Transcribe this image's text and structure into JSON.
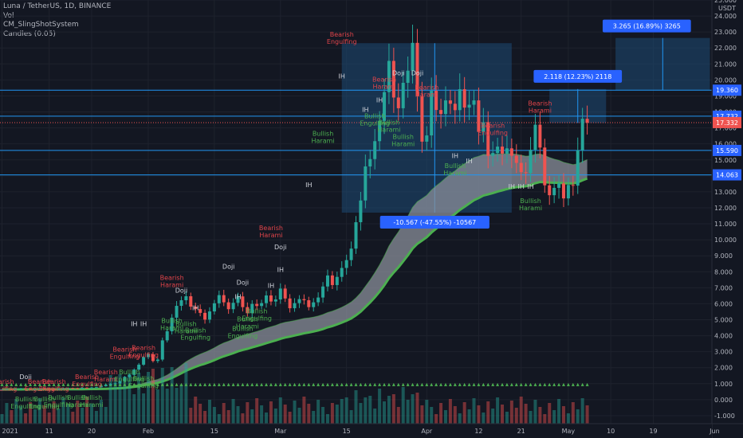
{
  "header": {
    "symbol_line": "Luna / TetherUS, 1D, BINANCE",
    "indicators": [
      "Vol",
      "CM_SlingShotSystem",
      "Candles (0.05)"
    ]
  },
  "colors": {
    "background": "#131722",
    "up": "#26a69a",
    "down": "#ef5350",
    "ribbon_fill": "#8a8f99",
    "ribbon_edge": "#4caf50",
    "hline": "#2196f3",
    "box_fill": "#1e4a75",
    "label_blue": "#2962ff",
    "pattern_red": "#e0444a",
    "pattern_green": "#4caf50",
    "pattern_white": "#d1d4dc",
    "triangle": "#4caf50"
  },
  "chart_data": {
    "type": "candlestick",
    "ylim": [
      -1.5,
      25
    ],
    "y_ticks": [
      "-1.000",
      "0.000",
      "1.000",
      "2.000",
      "3.000",
      "4.000",
      "5.000",
      "6.000",
      "7.000",
      "8.000",
      "9.000",
      "10.000",
      "11.000",
      "12.000",
      "13.000",
      "14.000",
      "15.000",
      "16.000",
      "17.000",
      "18.000",
      "19.000",
      "20.000",
      "21.000",
      "22.000",
      "23.000",
      "24.000",
      "25.000"
    ],
    "y_tick_values": [
      -1,
      0,
      1,
      2,
      3,
      4,
      5,
      6,
      7,
      8,
      9,
      10,
      11,
      12,
      13,
      14,
      15,
      16,
      17,
      18,
      19,
      20,
      21,
      22,
      23,
      24,
      25
    ],
    "currency": "USDT",
    "x_ticks": [
      {
        "label": "2021",
        "day": 0
      },
      {
        "label": "11",
        "day": 10
      },
      {
        "label": "20",
        "day": 19
      },
      {
        "label": "Feb",
        "day": 31
      },
      {
        "label": "15",
        "day": 45
      },
      {
        "label": "Mar",
        "day": 59
      },
      {
        "label": "15",
        "day": 73
      },
      {
        "label": "Apr",
        "day": 90
      },
      {
        "label": "12",
        "day": 101
      },
      {
        "label": "21",
        "day": 110
      },
      {
        "label": "May",
        "day": 120
      },
      {
        "label": "10",
        "day": 129
      },
      {
        "label": "19",
        "day": 138
      },
      {
        "label": "Jun",
        "day": 151
      }
    ],
    "price_levels": [
      {
        "label": "19.360",
        "value": 19.36
      },
      {
        "label": "17.732",
        "value": 17.732
      },
      {
        "label": "15.590",
        "value": 15.59
      },
      {
        "label": "14.063",
        "value": 14.063
      }
    ],
    "last_price": {
      "label": "17.332",
      "value": 17.332
    },
    "close": [
      0.64,
      0.66,
      0.63,
      0.68,
      0.71,
      0.68,
      0.63,
      0.64,
      0.71,
      0.68,
      0.66,
      0.63,
      0.68,
      0.71,
      0.73,
      0.72,
      0.69,
      0.75,
      0.74,
      0.76,
      0.78,
      0.85,
      0.93,
      0.99,
      1.02,
      1.15,
      1.42,
      1.55,
      1.88,
      2.19,
      2.66,
      2.84,
      2.42,
      2.51,
      3.71,
      4.28,
      5.13,
      5.87,
      6.22,
      6.47,
      5.82,
      5.67,
      5.43,
      5.01,
      5.52,
      6.03,
      6.54,
      6.09,
      5.66,
      6.06,
      6.46,
      5.79,
      5.41,
      5.99,
      5.86,
      6.04,
      6.52,
      6.14,
      6.27,
      6.95,
      6.33,
      5.72,
      6.04,
      6.29,
      6.22,
      5.79,
      6.09,
      6.39,
      7.08,
      7.77,
      7.17,
      7.68,
      8.24,
      8.73,
      9.45,
      11.1,
      12.46,
      14.59,
      15.05,
      16.17,
      17.44,
      19.24,
      21.19,
      18.9,
      18.23,
      19.82,
      20.58,
      22.32,
      18.99,
      16.14,
      16.53,
      19.32,
      18.12,
      17.87,
      18.72,
      18.51,
      18.11,
      19.42,
      18.27,
      18.45,
      18.72,
      16.75,
      17.36,
      15.25,
      15.43,
      15.83,
      15.39,
      15.72,
      15.26,
      14.81,
      14.23,
      14.17,
      15.63,
      17.2,
      15.77,
      13.41,
      12.79,
      13.25,
      13.53,
      12.59,
      13.43,
      13.39,
      15.6,
      17.57,
      17.33
    ],
    "triangle_signal_value": 0.95,
    "measurements": [
      {
        "label": "3.265 (16.89%) 3265",
        "from": 19.36,
        "to": 22.625
      },
      {
        "label": "2.118 (12.23%) 2118",
        "from": 17.31,
        "to": 19.43
      },
      {
        "label": "-10.567 (-47.55%) -10567",
        "from": 22.3,
        "to": 11.7
      }
    ],
    "patterns": [
      {
        "text": "Bearish\nEngulfing",
        "color": "red",
        "day": 0,
        "value": 1.0
      },
      {
        "text": "Doji",
        "color": "white",
        "day": 5,
        "value": 1.3
      },
      {
        "text": "Bearish\nEngulfing",
        "color": "red",
        "day": 8,
        "value": 1.0
      },
      {
        "text": "Bearish\nEngulfing",
        "color": "red",
        "day": 11,
        "value": 1.0
      },
      {
        "text": "Bearish\nEngulfing",
        "color": "red",
        "day": 18,
        "value": 1.3
      },
      {
        "text": "Bearish\nHarami",
        "color": "red",
        "day": 22,
        "value": 1.6
      },
      {
        "text": "Bullish\nEngulfing",
        "color": "green",
        "day": 5,
        "value": -0.1
      },
      {
        "text": "Bullish\nEngulfing",
        "color": "green",
        "day": 9,
        "value": -0.1
      },
      {
        "text": "Bullish\nEngulfing",
        "color": "green",
        "day": 12,
        "value": 0.0
      },
      {
        "text": "Bullish\nHarami",
        "color": "green",
        "day": 16,
        "value": 0.0
      },
      {
        "text": "Bullish\nHarami",
        "color": "green",
        "day": 19,
        "value": 0.0
      },
      {
        "text": "Bearish\nEngulfing",
        "color": "red",
        "day": 26,
        "value": 3.0
      },
      {
        "text": "Bullish\nEngulfing",
        "color": "green",
        "day": 27,
        "value": 1.6
      },
      {
        "text": "Bullish\nEngulfing",
        "color": "green",
        "day": 30,
        "value": 1.2
      },
      {
        "text": "Bearish\nEngulfing",
        "color": "red",
        "day": 30,
        "value": 3.1
      },
      {
        "text": "Bearish\nHarami",
        "color": "red",
        "day": 36,
        "value": 7.5
      },
      {
        "text": "Doji",
        "color": "white",
        "day": 38,
        "value": 6.7
      },
      {
        "text": "Bullish\nHarami",
        "color": "green",
        "day": 36,
        "value": 4.8
      },
      {
        "text": "Bullish\nHarami",
        "color": "green",
        "day": 39,
        "value": 4.6
      },
      {
        "text": "Bullish\nEngulfing",
        "color": "green",
        "day": 41,
        "value": 4.2
      },
      {
        "text": "Doji",
        "color": "white",
        "day": 48,
        "value": 8.2
      },
      {
        "text": "Doji",
        "color": "white",
        "day": 51,
        "value": 7.2
      },
      {
        "text": "Bullish\nEngulfing",
        "color": "green",
        "day": 54,
        "value": 5.4
      },
      {
        "text": "Bullish\nHarami",
        "color": "green",
        "day": 52,
        "value": 4.9
      },
      {
        "text": "Bullish\nEngulfing",
        "color": "green",
        "day": 51,
        "value": 4.3
      },
      {
        "text": "Doji",
        "color": "white",
        "day": 59,
        "value": 9.4
      },
      {
        "text": "Bearish\nHarami",
        "color": "red",
        "day": 57,
        "value": 10.6
      },
      {
        "text": "Bearish\nEngulfing",
        "color": "red",
        "day": 72,
        "value": 22.7
      },
      {
        "text": "Bullish\nHarami",
        "color": "green",
        "day": 68,
        "value": 16.5
      },
      {
        "text": "Bearish\nHarami",
        "color": "red",
        "day": 81,
        "value": 19.9
      },
      {
        "text": "Doji",
        "color": "white",
        "day": 84,
        "value": 20.3
      },
      {
        "text": "Doji",
        "color": "white",
        "day": 88,
        "value": 20.3
      },
      {
        "text": "Bearish\nHarami",
        "color": "red",
        "day": 90,
        "value": 19.4
      },
      {
        "text": "Bullish\nEngulfing",
        "color": "green",
        "day": 79,
        "value": 17.6
      },
      {
        "text": "Bullish\nHarami",
        "color": "green",
        "day": 82,
        "value": 17.2
      },
      {
        "text": "Bullish\nHarami",
        "color": "green",
        "day": 85,
        "value": 16.3
      },
      {
        "text": "Bearish\nEngulfing",
        "color": "red",
        "day": 104,
        "value": 17.0
      },
      {
        "text": "Bullish\nHarami",
        "color": "green",
        "day": 96,
        "value": 14.5
      },
      {
        "text": "Bullish\nHarami",
        "color": "green",
        "day": 112,
        "value": 12.3
      },
      {
        "text": "Bearish\nHarami",
        "color": "red",
        "day": 114,
        "value": 18.4
      }
    ],
    "ih_marks": [
      {
        "day": 28,
        "value": 4.6
      },
      {
        "day": 30,
        "value": 4.6
      },
      {
        "day": 41,
        "value": 5.6
      },
      {
        "day": 50,
        "value": 6.3
      },
      {
        "day": 57,
        "value": 7.0
      },
      {
        "day": 59,
        "value": 8.0
      },
      {
        "day": 65,
        "value": 13.3
      },
      {
        "day": 72,
        "value": 20.1
      },
      {
        "day": 77,
        "value": 18.0
      },
      {
        "day": 80,
        "value": 18.6
      },
      {
        "day": 96,
        "value": 15.1
      },
      {
        "day": 99,
        "value": 14.8
      },
      {
        "day": 108,
        "value": 13.2
      },
      {
        "day": 110,
        "value": 13.2
      },
      {
        "day": 112,
        "value": 13.2
      }
    ]
  }
}
